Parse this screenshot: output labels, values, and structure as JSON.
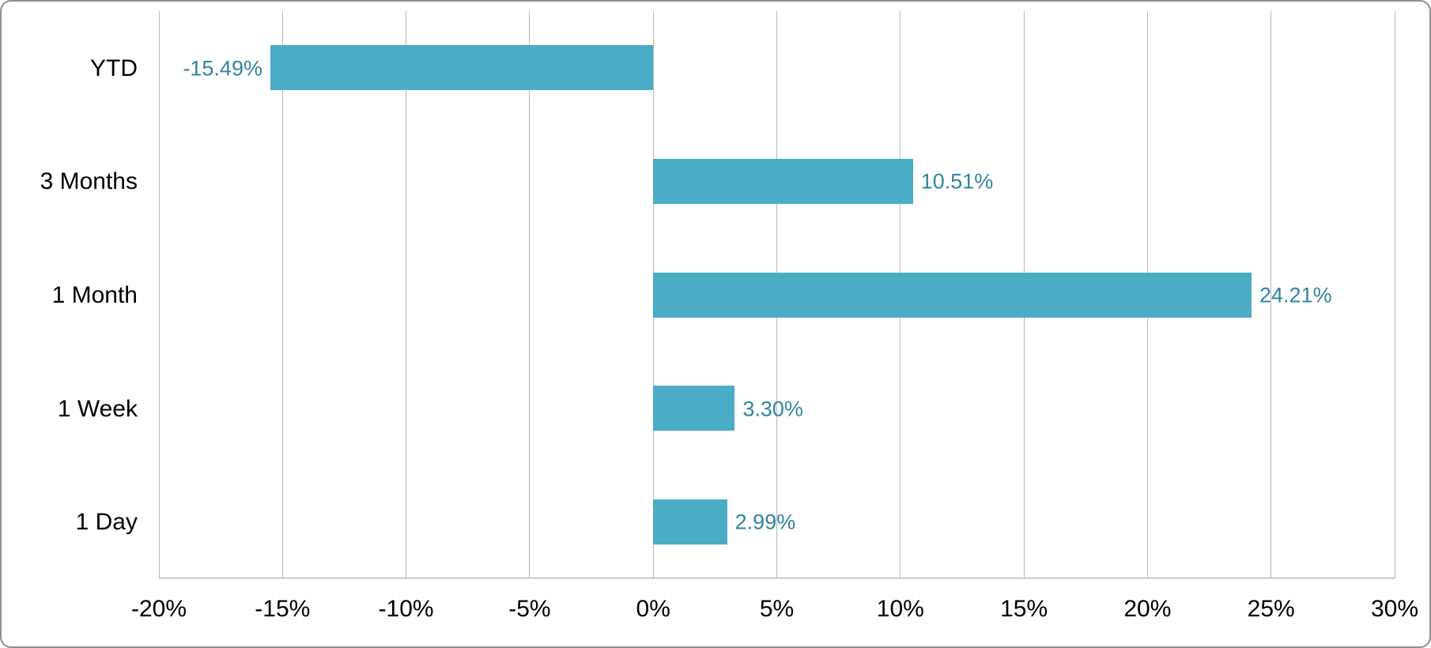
{
  "chart_data": {
    "type": "bar",
    "orientation": "horizontal",
    "title": "",
    "categories": [
      "YTD",
      "3 Months",
      "1 Month",
      "1 Week",
      "1 Day"
    ],
    "values": [
      -15.49,
      10.51,
      24.21,
      3.3,
      2.99
    ],
    "data_labels": [
      "-15.49%",
      "10.51%",
      "24.21%",
      "3.30%",
      "2.99%"
    ],
    "x_tick_labels": [
      "-20%",
      "-15%",
      "-10%",
      "-5%",
      "0%",
      "5%",
      "10%",
      "15%",
      "20%",
      "25%",
      "30%"
    ],
    "x_tick_values": [
      -20,
      -15,
      -10,
      -5,
      0,
      5,
      10,
      15,
      20,
      25,
      30
    ],
    "xlim": [
      -20,
      30
    ],
    "grid": "vertical",
    "legend": "none",
    "colors": {
      "bar": "#4BACC6",
      "data_label": "#31859C",
      "category_label": "#000000",
      "tick_label": "#000000",
      "gridline": "#B8B8B8",
      "axis_line": "#9E9E9E",
      "card_border": "#8F8F8F",
      "background": "#FFFFFF"
    }
  }
}
